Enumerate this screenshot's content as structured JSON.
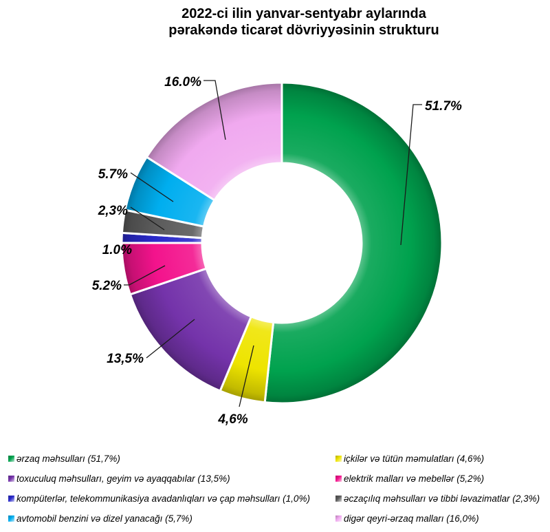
{
  "title": {
    "line1": "2022-ci ilin yanvar-sentyabr aylarında",
    "line2": "pərakəndə ticarət dövriyyəsinin strukturu"
  },
  "chart_data": {
    "type": "pie",
    "subtype": "donut",
    "title": "2022-ci ilin yanvar-sentyabr aylarında pərakəndə ticarət dövriyyəsinin strukturu",
    "start_angle_deg": 0,
    "direction": "clockwise",
    "hole_radius_ratio": 0.5,
    "legend_position": "bottom",
    "units": "%",
    "slices": [
      {
        "label": "ərzaq məhsulları",
        "value": 51.7,
        "data_label": "51.7%",
        "color": "#00A24E"
      },
      {
        "label": "içkilər və tütün məmulatları",
        "value": 4.6,
        "data_label": "4,6%",
        "color": "#EEE400"
      },
      {
        "label": "toxuculuq məhsulları, geyim və ayaqqabılar",
        "value": 13.5,
        "data_label": "13,5%",
        "color": "#7433AA"
      },
      {
        "label": "elektrik malları və mebellər",
        "value": 5.2,
        "data_label": "5.2%",
        "color": "#F3138C"
      },
      {
        "label": "kompüterlər, telekommunikasiya avadanlıqları və çap məhsulları",
        "value": 1.0,
        "data_label": "1.0%",
        "color": "#2A2ACA"
      },
      {
        "label": "əczaçılıq məhsulları və tibbi ləvazimatlar",
        "value": 2.3,
        "data_label": "2,3%",
        "color": "#5B5B5B"
      },
      {
        "label": "avtomobil benzini və dizel yanacağı",
        "value": 5.7,
        "data_label": "5.7%",
        "color": "#00AEEF"
      },
      {
        "label": "digər qeyri-ərzaq malları",
        "value": 16.0,
        "data_label": "16.0%",
        "color": "#F0A9EF"
      }
    ]
  },
  "legend": {
    "columns": [
      {
        "items": [
          {
            "text": "ərzaq məhsulları (51,7%)",
            "color": "#00A24E"
          },
          {
            "text": "toxuculuq məhsulları, geyim və ayaqqabılar (13,5%)",
            "color": "#7433AA"
          },
          {
            "text": "kompüterlər, telekommunikasiya avadanlıqları və çap məhsulları (1,0%)",
            "color": "#2A2ACA"
          },
          {
            "text": "avtomobil benzini və dizel yanacağı (5,7%)",
            "color": "#00AEEF"
          }
        ]
      },
      {
        "items": [
          {
            "text": "içkilər və tütün məmulatları (4,6%)",
            "color": "#EEE400"
          },
          {
            "text": "elektrik malları və mebellər (5,2%)",
            "color": "#F3138C"
          },
          {
            "text": "əczaçılıq məhsulları və tibbi ləvazimatlar (2,3%)",
            "color": "#5B5B5B"
          },
          {
            "text": "digər qeyri-ərzaq malları (16,0%)",
            "color": "#F0A9EF"
          }
        ]
      }
    ]
  }
}
